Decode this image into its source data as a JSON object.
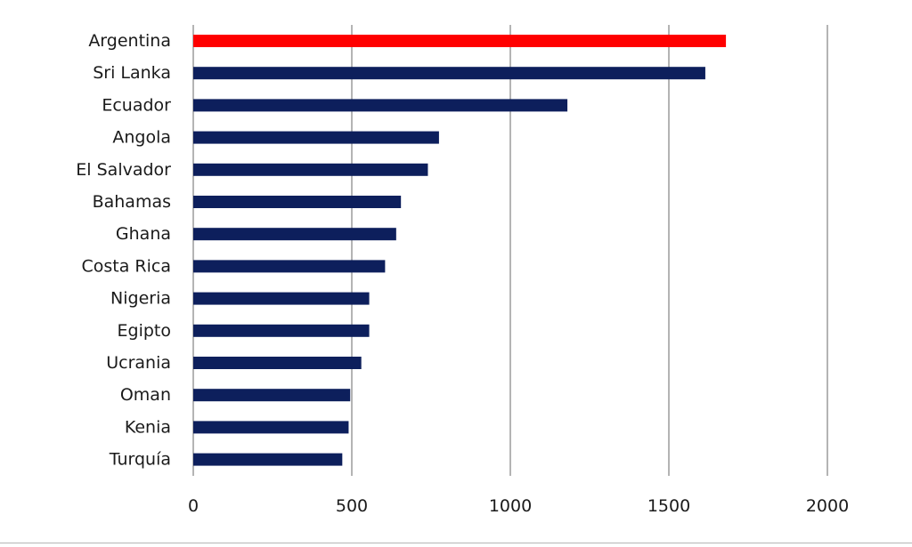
{
  "chart_data": {
    "type": "bar",
    "orientation": "horizontal",
    "categories": [
      "Argentina",
      "Sri Lanka",
      "Ecuador",
      "Angola",
      "El Salvador",
      "Bahamas",
      "Ghana",
      "Costa Rica",
      "Nigeria",
      "Egipto",
      "Ucrania",
      "Oman",
      "Kenia",
      "Turquía"
    ],
    "values": [
      1680,
      1615,
      1180,
      775,
      740,
      655,
      640,
      605,
      555,
      555,
      530,
      495,
      490,
      470
    ],
    "highlight_category": "Argentina",
    "colors": {
      "highlight": "#ff0000",
      "default": "#0d1f5c",
      "grid": "#8c8c8c"
    },
    "xlim": [
      0,
      2000
    ],
    "xticks": [
      0,
      500,
      1000,
      1500,
      2000
    ],
    "grid": true,
    "title": "",
    "xlabel": "",
    "ylabel": ""
  }
}
